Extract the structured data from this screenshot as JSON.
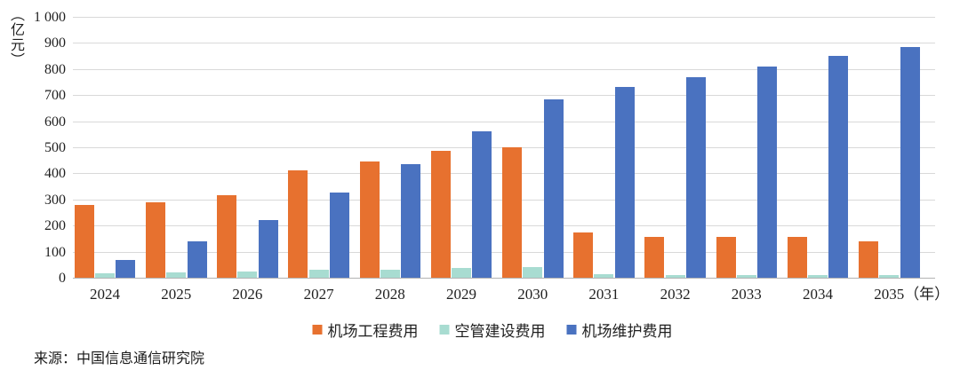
{
  "chart_data": {
    "type": "bar",
    "title": "",
    "y_unit_label": "（亿元）",
    "x_suffix_label": "（年）",
    "categories": [
      "2024",
      "2025",
      "2026",
      "2027",
      "2028",
      "2029",
      "2030",
      "2031",
      "2032",
      "2033",
      "2034",
      "2035"
    ],
    "series": [
      {
        "id": "airport-engineering",
        "name": "机场工程费用",
        "color": "#E7712F",
        "values": [
          280,
          290,
          318,
          413,
          445,
          487,
          500,
          173,
          157,
          158,
          158,
          140
        ]
      },
      {
        "id": "atc-construction",
        "name": "空管建设费用",
        "color": "#A8DCD1",
        "values": [
          17,
          19,
          23,
          31,
          30,
          38,
          40,
          12,
          10,
          9,
          11,
          9
        ]
      },
      {
        "id": "airport-maintenance",
        "name": "机场维护费用",
        "color": "#4A72C0",
        "values": [
          68,
          140,
          220,
          325,
          437,
          560,
          685,
          730,
          770,
          810,
          850,
          885
        ]
      }
    ],
    "ylim": [
      0,
      1000
    ],
    "ytick_step": 100,
    "ytick_labels": [
      "0",
      "100",
      "200",
      "300",
      "400",
      "500",
      "600",
      "700",
      "800",
      "900",
      "1 000"
    ],
    "grid": true,
    "gridline_color": "#d9d9d9",
    "axisline_color": "#b3b3b3",
    "legend_position": "bottom"
  },
  "source": {
    "text": "来源：中国信息通信研究院"
  }
}
